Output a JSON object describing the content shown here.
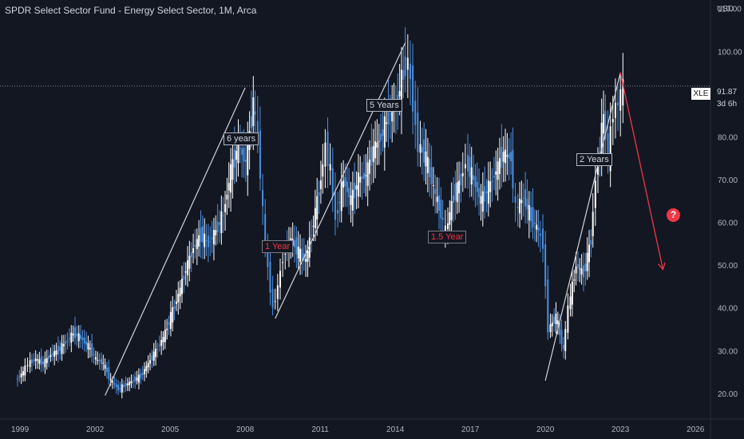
{
  "header": {
    "title": "SPDR Select Sector Fund - Energy Select Sector, 1M, Arca",
    "currency": "USD"
  },
  "price_label": {
    "ticker": "XLE",
    "value": "91.87",
    "time_to_close": "3d 6h"
  },
  "annotations": {
    "six_years": "6 years",
    "one_year": "1 Year",
    "five_years": "5 Years",
    "one_half_year": "1.5 Year",
    "two_years": "2 Years"
  },
  "colors": {
    "background": "#131722",
    "candle": "#ffffff",
    "candle_down": "#4a90e2",
    "trend_line": "#d1d4dc",
    "projection": "#f23645"
  },
  "icons": {
    "question": "question-circle-icon"
  },
  "question_glyph": "?",
  "chart_data": {
    "type": "candlestick",
    "title": "SPDR Select Sector Fund - Energy Select Sector, 1M, Arca",
    "y_ticks": [
      "20.00",
      "30.00",
      "40.00",
      "50.00",
      "60.00",
      "70.00",
      "80.00",
      "90.00",
      "100.00",
      "110.00"
    ],
    "x_ticks": [
      "1999",
      "2002",
      "2005",
      "2008",
      "2011",
      "2014",
      "2017",
      "2020",
      "2023",
      "2026"
    ],
    "ylim": [
      14,
      112
    ],
    "xlim": [
      1998.2,
      2026.6
    ],
    "last_price": 91.87,
    "series": [
      {
        "x": 1998.9,
        "y": 23
      },
      {
        "x": 1999.2,
        "y": 25
      },
      {
        "x": 1999.4,
        "y": 27
      },
      {
        "x": 1999.7,
        "y": 28
      },
      {
        "x": 2000.0,
        "y": 27
      },
      {
        "x": 2000.3,
        "y": 29
      },
      {
        "x": 2000.6,
        "y": 30
      },
      {
        "x": 2000.9,
        "y": 32
      },
      {
        "x": 2001.2,
        "y": 34
      },
      {
        "x": 2001.5,
        "y": 33
      },
      {
        "x": 2001.8,
        "y": 31
      },
      {
        "x": 2002.1,
        "y": 28
      },
      {
        "x": 2002.4,
        "y": 27
      },
      {
        "x": 2002.7,
        "y": 23
      },
      {
        "x": 2003.0,
        "y": 21
      },
      {
        "x": 2003.3,
        "y": 22
      },
      {
        "x": 2003.6,
        "y": 23
      },
      {
        "x": 2003.9,
        "y": 24
      },
      {
        "x": 2004.2,
        "y": 27
      },
      {
        "x": 2004.5,
        "y": 30
      },
      {
        "x": 2004.8,
        "y": 33
      },
      {
        "x": 2005.1,
        "y": 38
      },
      {
        "x": 2005.4,
        "y": 43
      },
      {
        "x": 2005.7,
        "y": 49
      },
      {
        "x": 2006.0,
        "y": 54
      },
      {
        "x": 2006.3,
        "y": 57
      },
      {
        "x": 2006.6,
        "y": 55
      },
      {
        "x": 2006.9,
        "y": 58
      },
      {
        "x": 2007.2,
        "y": 62
      },
      {
        "x": 2007.5,
        "y": 72
      },
      {
        "x": 2007.8,
        "y": 78
      },
      {
        "x": 2008.1,
        "y": 74
      },
      {
        "x": 2008.4,
        "y": 88
      },
      {
        "x": 2008.6,
        "y": 80
      },
      {
        "x": 2008.8,
        "y": 62
      },
      {
        "x": 2009.0,
        "y": 49
      },
      {
        "x": 2009.2,
        "y": 40
      },
      {
        "x": 2009.4,
        "y": 45
      },
      {
        "x": 2009.6,
        "y": 52
      },
      {
        "x": 2009.9,
        "y": 56
      },
      {
        "x": 2010.2,
        "y": 53
      },
      {
        "x": 2010.5,
        "y": 51
      },
      {
        "x": 2010.8,
        "y": 60
      },
      {
        "x": 2011.1,
        "y": 70
      },
      {
        "x": 2011.3,
        "y": 78
      },
      {
        "x": 2011.5,
        "y": 72
      },
      {
        "x": 2011.7,
        "y": 61
      },
      {
        "x": 2012.0,
        "y": 70
      },
      {
        "x": 2012.3,
        "y": 65
      },
      {
        "x": 2012.6,
        "y": 70
      },
      {
        "x": 2012.9,
        "y": 71
      },
      {
        "x": 2013.2,
        "y": 77
      },
      {
        "x": 2013.5,
        "y": 80
      },
      {
        "x": 2013.8,
        "y": 85
      },
      {
        "x": 2014.1,
        "y": 87
      },
      {
        "x": 2014.4,
        "y": 95
      },
      {
        "x": 2014.6,
        "y": 98
      },
      {
        "x": 2014.8,
        "y": 88
      },
      {
        "x": 2015.0,
        "y": 78
      },
      {
        "x": 2015.3,
        "y": 75
      },
      {
        "x": 2015.6,
        "y": 68
      },
      {
        "x": 2015.9,
        "y": 62
      },
      {
        "x": 2016.1,
        "y": 58
      },
      {
        "x": 2016.4,
        "y": 66
      },
      {
        "x": 2016.7,
        "y": 70
      },
      {
        "x": 2016.9,
        "y": 74
      },
      {
        "x": 2017.2,
        "y": 70
      },
      {
        "x": 2017.5,
        "y": 65
      },
      {
        "x": 2017.8,
        "y": 68
      },
      {
        "x": 2018.1,
        "y": 72
      },
      {
        "x": 2018.4,
        "y": 76
      },
      {
        "x": 2018.7,
        "y": 75
      },
      {
        "x": 2018.9,
        "y": 63
      },
      {
        "x": 2019.2,
        "y": 66
      },
      {
        "x": 2019.5,
        "y": 61
      },
      {
        "x": 2019.8,
        "y": 58
      },
      {
        "x": 2020.0,
        "y": 55
      },
      {
        "x": 2020.2,
        "y": 35
      },
      {
        "x": 2020.5,
        "y": 38
      },
      {
        "x": 2020.8,
        "y": 30
      },
      {
        "x": 2021.0,
        "y": 40
      },
      {
        "x": 2021.3,
        "y": 50
      },
      {
        "x": 2021.6,
        "y": 48
      },
      {
        "x": 2021.9,
        "y": 56
      },
      {
        "x": 2022.1,
        "y": 70
      },
      {
        "x": 2022.4,
        "y": 85
      },
      {
        "x": 2022.6,
        "y": 75
      },
      {
        "x": 2022.8,
        "y": 86
      },
      {
        "x": 2023.0,
        "y": 88
      },
      {
        "x": 2023.2,
        "y": 91.87
      }
    ],
    "trend_lines": [
      {
        "from": [
          2002.4,
          19.5
        ],
        "to": [
          2008.0,
          91.5
        ]
      },
      {
        "from": [
          2009.2,
          37.5
        ],
        "to": [
          2014.4,
          102
        ]
      },
      {
        "from": [
          2020.0,
          23
        ],
        "to": [
          2023.0,
          95
        ]
      }
    ],
    "projection": {
      "from": [
        2023.0,
        95
      ],
      "to": [
        2024.7,
        49
      ]
    }
  }
}
